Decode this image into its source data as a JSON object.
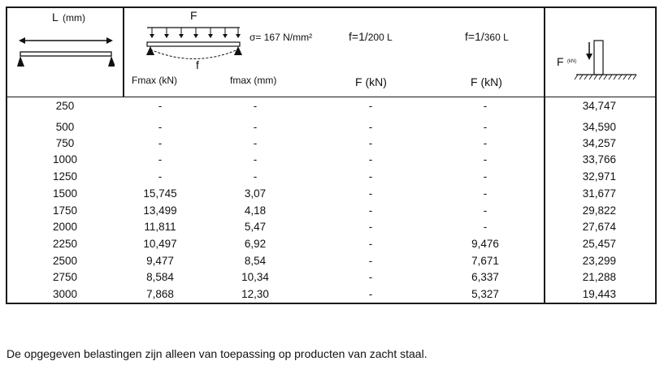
{
  "header": {
    "col_length": {
      "label": "L",
      "unit": "(mm)"
    },
    "col_beam": {
      "force_label": "F",
      "deflection_label": "f",
      "stress": "σ= 167 N/mm²",
      "fmax_kn": "Fmax (kN)",
      "fmax_mm": "fmax (mm)"
    },
    "col_200": {
      "formula_prefix": "f=1/",
      "formula_sub": "200 L",
      "unit": "F (kN)"
    },
    "col_360": {
      "formula_prefix": "f=1/",
      "formula_sub": "360 L",
      "unit": "F (kN)"
    },
    "col_buckling": {
      "force_label": "F",
      "force_unit": "(kN)"
    }
  },
  "rows": [
    [
      "250",
      "-",
      "-",
      "-",
      "-",
      "34,747"
    ],
    [
      "500",
      "-",
      "-",
      "-",
      "-",
      "34,590"
    ],
    [
      "750",
      "-",
      "-",
      "-",
      "-",
      "34,257"
    ],
    [
      "1000",
      "-",
      "-",
      "-",
      "-",
      "33,766"
    ],
    [
      "1250",
      "-",
      "-",
      "-",
      "-",
      "32,971"
    ],
    [
      "1500",
      "15,745",
      "3,07",
      "-",
      "-",
      "31,677"
    ],
    [
      "1750",
      "13,499",
      "4,18",
      "-",
      "-",
      "29,822"
    ],
    [
      "2000",
      "11,811",
      "5,47",
      "-",
      "-",
      "27,674"
    ],
    [
      "2250",
      "10,497",
      "6,92",
      "-",
      "9,476",
      "25,457"
    ],
    [
      "2500",
      "9,477",
      "8,54",
      "-",
      "7,671",
      "23,299"
    ],
    [
      "2750",
      "8,584",
      "10,34",
      "-",
      "6,337",
      "21,288"
    ],
    [
      "3000",
      "7,868",
      "12,30",
      "-",
      "5,327",
      "19,443"
    ]
  ],
  "footnote": "De opgegeven belastingen zijn alleen van toepassing op producten van zacht staal."
}
